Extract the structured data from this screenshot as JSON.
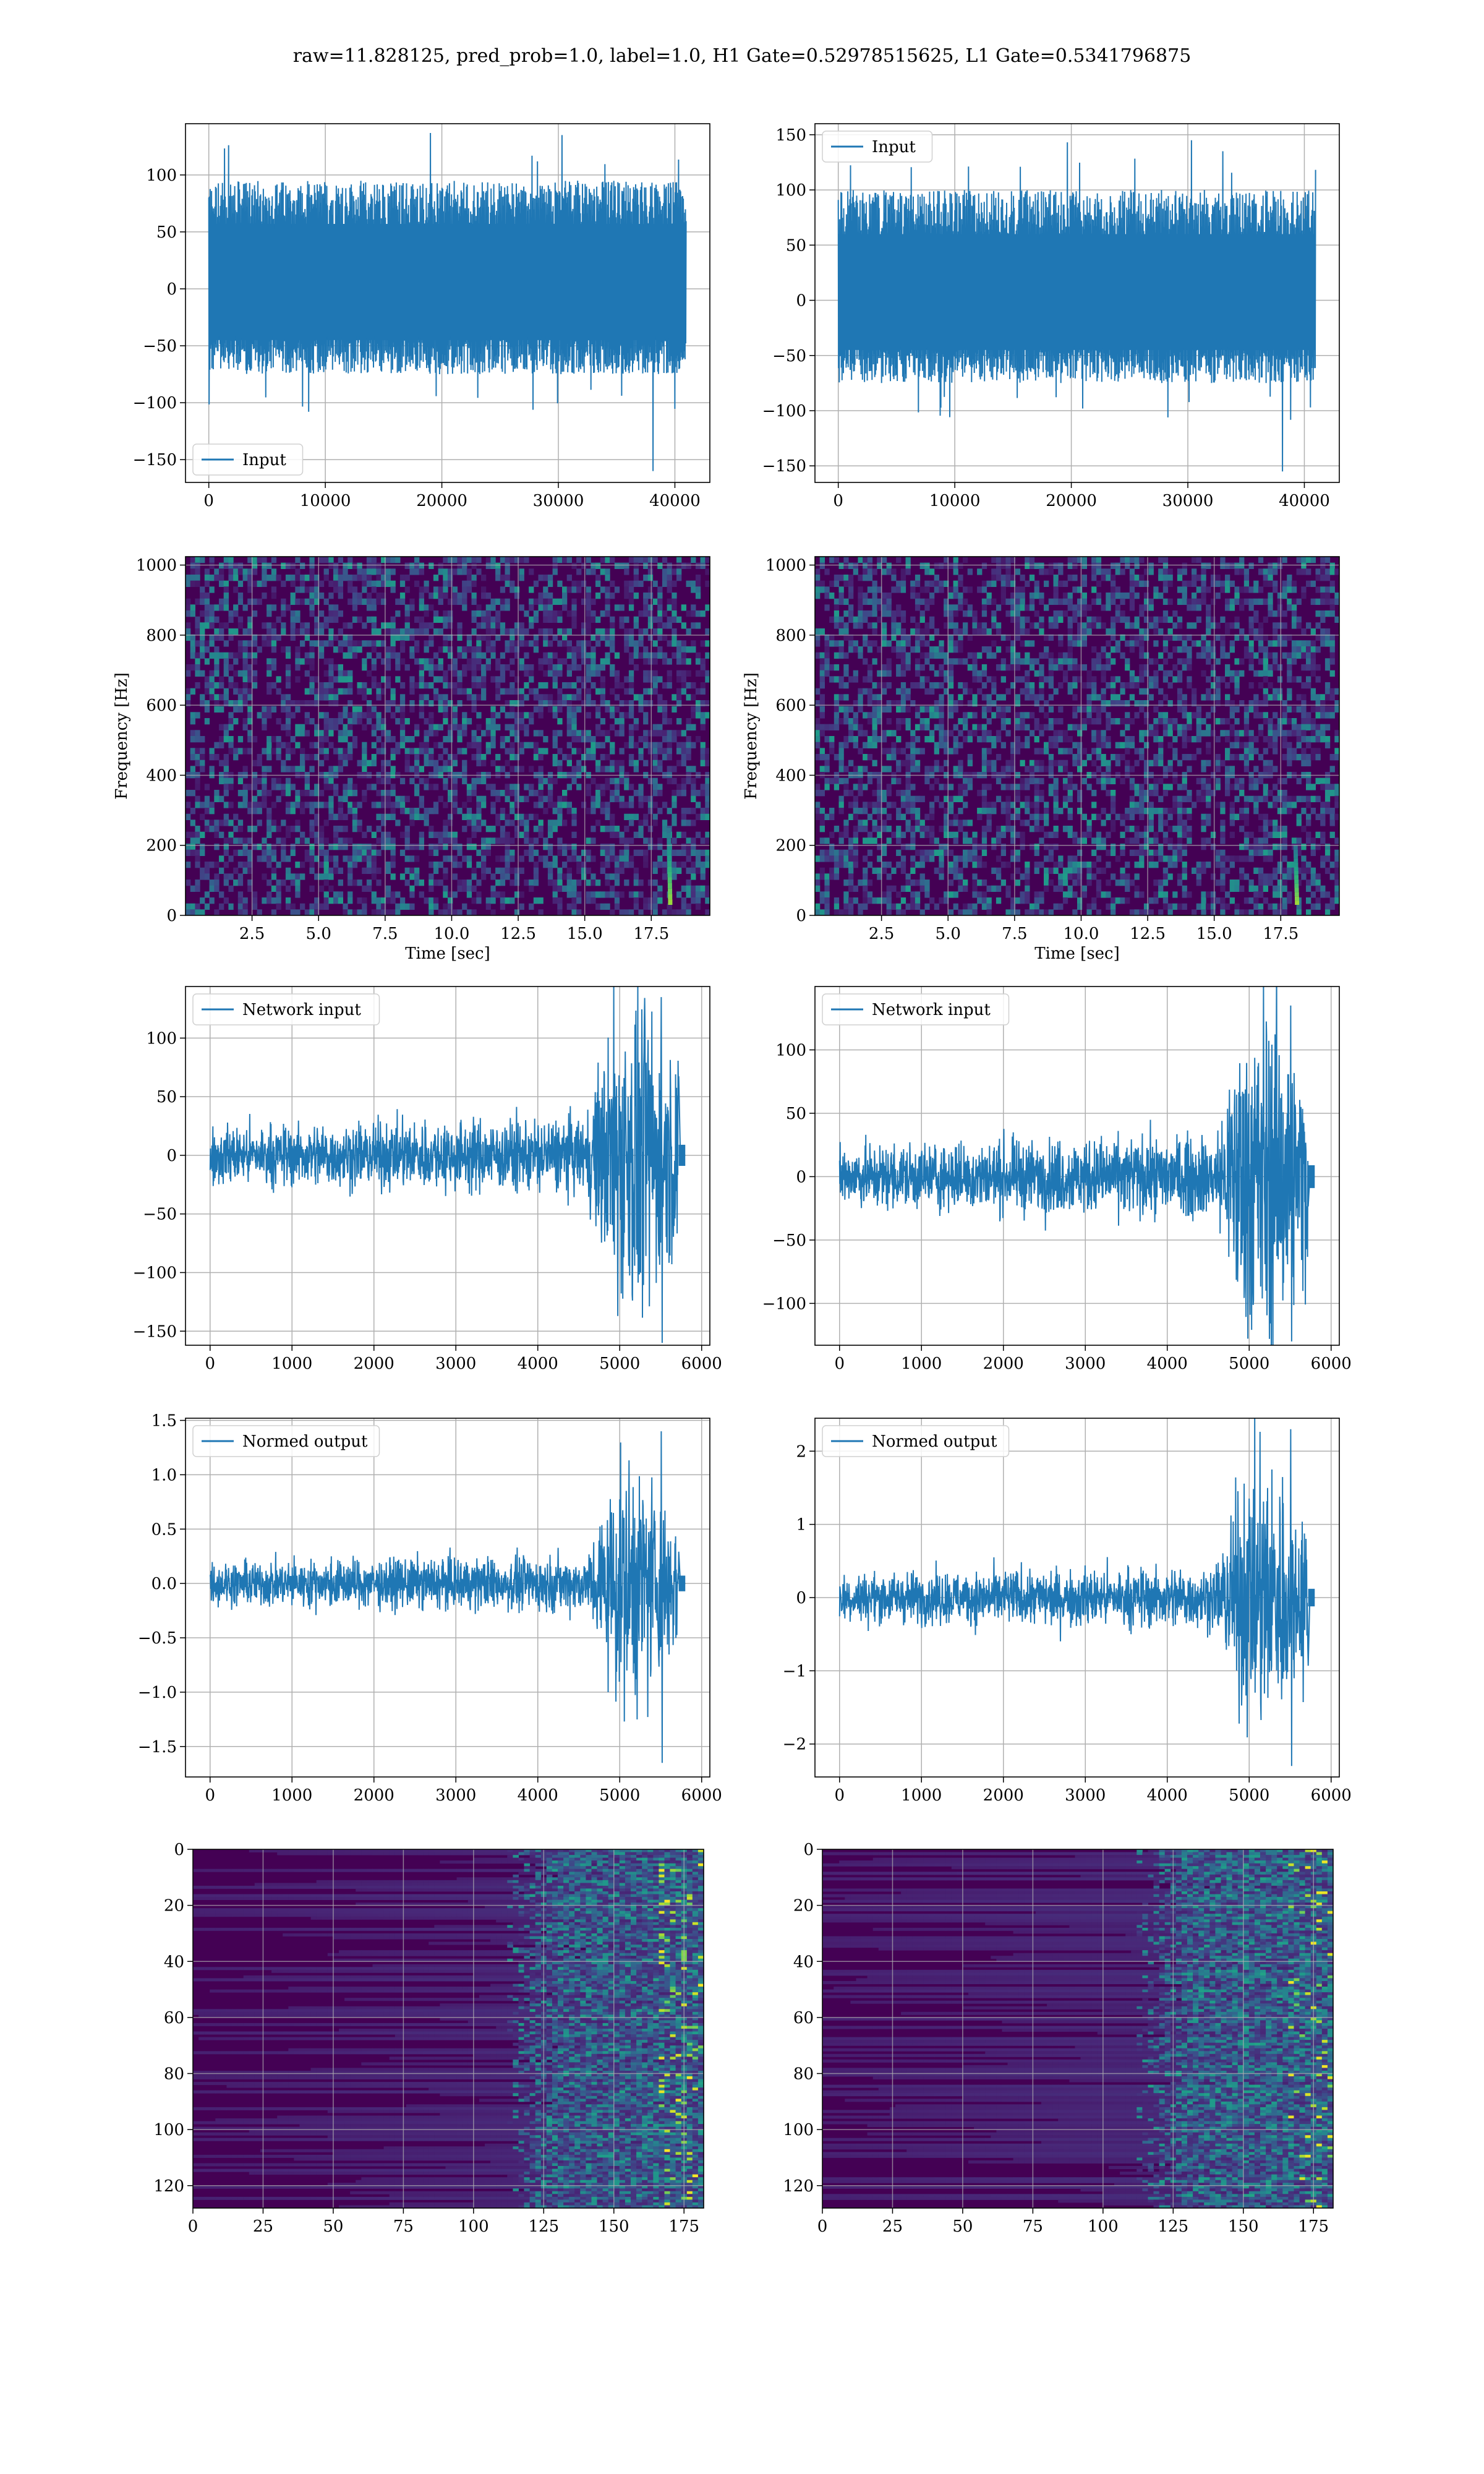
{
  "figure_title": "raw=11.828125, pred_prob=1.0, label=1.0, H1 Gate=0.52978515625, L1 Gate=0.5341796875",
  "colors": {
    "line": "#1f77b4",
    "grid": "#b0b0b0",
    "viridis_dark": "#440154",
    "viridis_mid": "#21918c",
    "viridis_bright": "#fde725"
  },
  "chart_data": [
    {
      "type": "line",
      "detector": "H1",
      "legend": "Input",
      "legend_loc": "lower-left",
      "xlim": [
        -2000,
        43000
      ],
      "ylim": [
        -170,
        145
      ],
      "xticks": [
        0,
        10000,
        20000,
        30000,
        40000
      ],
      "yticks": [
        -150,
        -100,
        -50,
        0,
        50,
        100
      ],
      "x_range": [
        0,
        40960
      ],
      "envelope": [
        -75,
        95
      ],
      "peaks": [
        135,
        -160
      ],
      "grid": true,
      "xlabel": "",
      "ylabel": ""
    },
    {
      "type": "line",
      "detector": "L1",
      "legend": "Input",
      "legend_loc": "upper-left",
      "xlim": [
        -2000,
        43000
      ],
      "ylim": [
        -165,
        160
      ],
      "xticks": [
        0,
        10000,
        20000,
        30000,
        40000
      ],
      "yticks": [
        -150,
        -100,
        -50,
        0,
        50,
        100,
        150
      ],
      "x_range": [
        0,
        40960
      ],
      "envelope": [
        -75,
        100
      ],
      "peaks": [
        145,
        -155
      ],
      "grid": true,
      "xlabel": "",
      "ylabel": ""
    },
    {
      "type": "heatmap",
      "detector": "H1",
      "colormap": "viridis",
      "xlim": [
        0,
        19.7
      ],
      "ylim": [
        0,
        1024
      ],
      "xticks": [
        2.5,
        5.0,
        7.5,
        10.0,
        12.5,
        15.0,
        17.5
      ],
      "yticks": [
        0,
        200,
        400,
        600,
        800,
        1000
      ],
      "xlabel": "Time [sec]",
      "ylabel": "Frequency [Hz]",
      "chirp": {
        "t": 18.2,
        "f_min": 30,
        "f_max": 250
      },
      "grid": true
    },
    {
      "type": "heatmap",
      "detector": "L1",
      "colormap": "viridis",
      "xlim": [
        0,
        19.7
      ],
      "ylim": [
        0,
        1024
      ],
      "xticks": [
        2.5,
        5.0,
        7.5,
        10.0,
        12.5,
        15.0,
        17.5
      ],
      "yticks": [
        0,
        200,
        400,
        600,
        800,
        1000
      ],
      "xlabel": "Time [sec]",
      "ylabel": "Frequency [Hz]",
      "chirp": {
        "t": 18.1,
        "f_min": 30,
        "f_max": 200
      },
      "grid": true
    },
    {
      "type": "line",
      "detector": "H1",
      "legend": "Network input",
      "legend_loc": "upper-left",
      "xlim": [
        -300,
        6100
      ],
      "ylim": [
        -162,
        144
      ],
      "xticks": [
        0,
        1000,
        2000,
        3000,
        4000,
        5000,
        6000
      ],
      "yticks": [
        -150,
        -100,
        -50,
        0,
        50,
        100
      ],
      "x_range": [
        0,
        5800
      ],
      "signal_end": 5720,
      "base_amplitude": 15,
      "burst_start": 4600,
      "burst_peak": [
        135,
        -160
      ],
      "grid": true,
      "xlabel": "",
      "ylabel": ""
    },
    {
      "type": "line",
      "detector": "L1",
      "legend": "Network input",
      "legend_loc": "upper-left",
      "xlim": [
        -300,
        6100
      ],
      "ylim": [
        -133,
        150
      ],
      "xticks": [
        0,
        1000,
        2000,
        3000,
        4000,
        5000,
        6000
      ],
      "yticks": [
        -100,
        -50,
        0,
        50,
        100
      ],
      "x_range": [
        0,
        5800
      ],
      "signal_end": 5720,
      "base_amplitude": 15,
      "burst_start": 4600,
      "burst_peak": [
        135,
        -130
      ],
      "grid": true,
      "xlabel": "",
      "ylabel": ""
    },
    {
      "type": "line",
      "detector": "H1",
      "legend": "Normed output",
      "legend_loc": "upper-left",
      "xlim": [
        -300,
        6100
      ],
      "ylim": [
        -1.78,
        1.52
      ],
      "xticks": [
        0,
        1000,
        2000,
        3000,
        4000,
        5000,
        6000
      ],
      "yticks": [
        -1.5,
        -1.0,
        -0.5,
        0.0,
        0.5,
        1.0,
        1.5
      ],
      "x_range": [
        0,
        5800
      ],
      "signal_end": 5720,
      "base_amplitude": 0.12,
      "burst_start": 4600,
      "burst_peak": [
        1.4,
        -1.65
      ],
      "grid": true,
      "xlabel": "",
      "ylabel": ""
    },
    {
      "type": "line",
      "detector": "L1",
      "legend": "Normed output",
      "legend_loc": "upper-left",
      "xlim": [
        -300,
        6100
      ],
      "ylim": [
        -2.45,
        2.45
      ],
      "xticks": [
        0,
        1000,
        2000,
        3000,
        4000,
        5000,
        6000
      ],
      "yticks": [
        -2,
        -1,
        0,
        1,
        2
      ],
      "x_range": [
        0,
        5800
      ],
      "signal_end": 5720,
      "base_amplitude": 0.2,
      "burst_start": 4600,
      "burst_peak": [
        2.3,
        -2.3
      ],
      "grid": true,
      "xlabel": "",
      "ylabel": ""
    },
    {
      "type": "heatmap",
      "detector": "H1",
      "colormap": "viridis",
      "y_inverted": true,
      "xlim": [
        0,
        182
      ],
      "ylim": [
        128,
        0
      ],
      "xticks": [
        0,
        25,
        50,
        75,
        100,
        125,
        150,
        175
      ],
      "yticks": [
        0,
        20,
        40,
        60,
        80,
        100,
        120
      ],
      "activation_onset": 125,
      "grid": true,
      "xlabel": "",
      "ylabel": ""
    },
    {
      "type": "heatmap",
      "detector": "L1",
      "colormap": "viridis",
      "y_inverted": true,
      "xlim": [
        0,
        182
      ],
      "ylim": [
        128,
        0
      ],
      "xticks": [
        0,
        25,
        50,
        75,
        100,
        125,
        150,
        175
      ],
      "yticks": [
        0,
        20,
        40,
        60,
        80,
        100,
        120
      ],
      "activation_onset": 125,
      "grid": true,
      "xlabel": "",
      "ylabel": ""
    }
  ]
}
